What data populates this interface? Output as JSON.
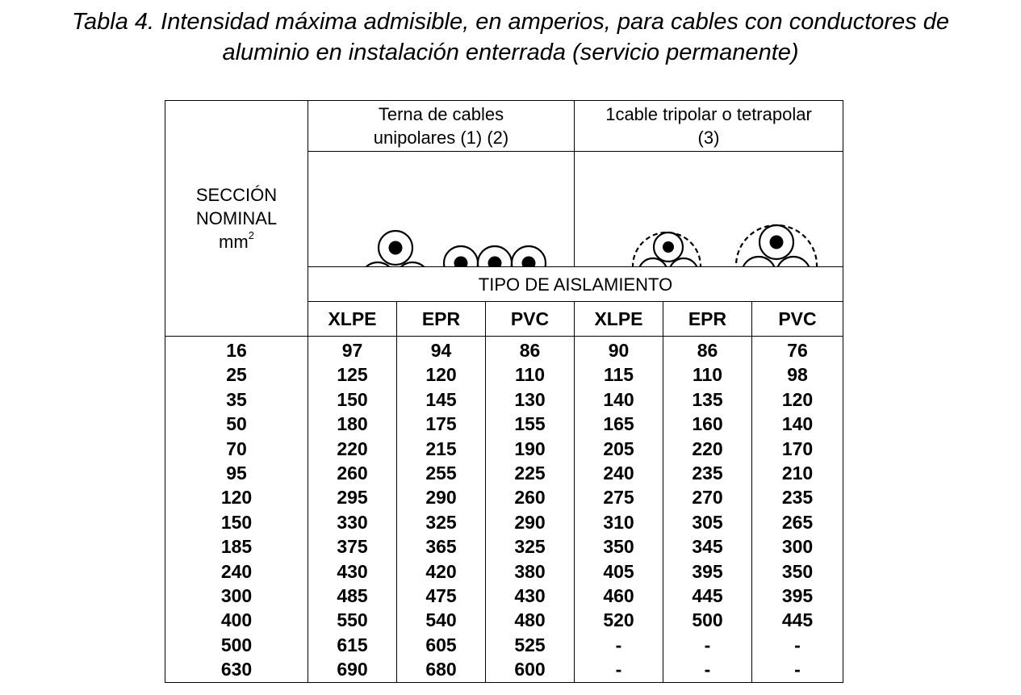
{
  "title": {
    "line1": "Tabla 4. Intensidad máxima admisible, en amperios, para cables con conductores de",
    "line2": "aluminio en instalación enterrada (servicio permanente)"
  },
  "header": {
    "seccion": [
      "SECCIÓN",
      "NOMINAL",
      "mm",
      "2"
    ],
    "group1": [
      "Terna de cables",
      "unipolares (1) (2)"
    ],
    "group2": [
      "1cable tripolar o tetrapolar",
      "(3)"
    ],
    "tipo": "TIPO DE AISLAMIENTO",
    "insulation": [
      "XLPE",
      "EPR",
      "PVC",
      "XLPE",
      "EPR",
      "PVC"
    ]
  },
  "icons": {
    "group1": [
      "trefoil-cables-icon",
      "flat-three-cables-icon"
    ],
    "group2": [
      "tripolar-cable-icon",
      "tetrapolar-cable-icon"
    ]
  },
  "rows": [
    [
      "16",
      "97",
      "94",
      "86",
      "90",
      "86",
      "76"
    ],
    [
      "25",
      "125",
      "120",
      "110",
      "115",
      "110",
      "98"
    ],
    [
      "35",
      "150",
      "145",
      "130",
      "140",
      "135",
      "120"
    ],
    [
      "50",
      "180",
      "175",
      "155",
      "165",
      "160",
      "140"
    ],
    [
      "70",
      "220",
      "215",
      "190",
      "205",
      "220",
      "170"
    ],
    [
      "95",
      "260",
      "255",
      "225",
      "240",
      "235",
      "210"
    ],
    [
      "120",
      "295",
      "290",
      "260",
      "275",
      "270",
      "235"
    ],
    [
      "150",
      "330",
      "325",
      "290",
      "310",
      "305",
      "265"
    ],
    [
      "185",
      "375",
      "365",
      "325",
      "350",
      "345",
      "300"
    ],
    [
      "240",
      "430",
      "420",
      "380",
      "405",
      "395",
      "350"
    ],
    [
      "300",
      "485",
      "475",
      "430",
      "460",
      "445",
      "395"
    ],
    [
      "400",
      "550",
      "540",
      "480",
      "520",
      "500",
      "445"
    ],
    [
      "500",
      "615",
      "605",
      "525",
      "-",
      "-",
      "-"
    ],
    [
      "630",
      "690",
      "680",
      "600",
      "-",
      "-",
      "-"
    ]
  ]
}
